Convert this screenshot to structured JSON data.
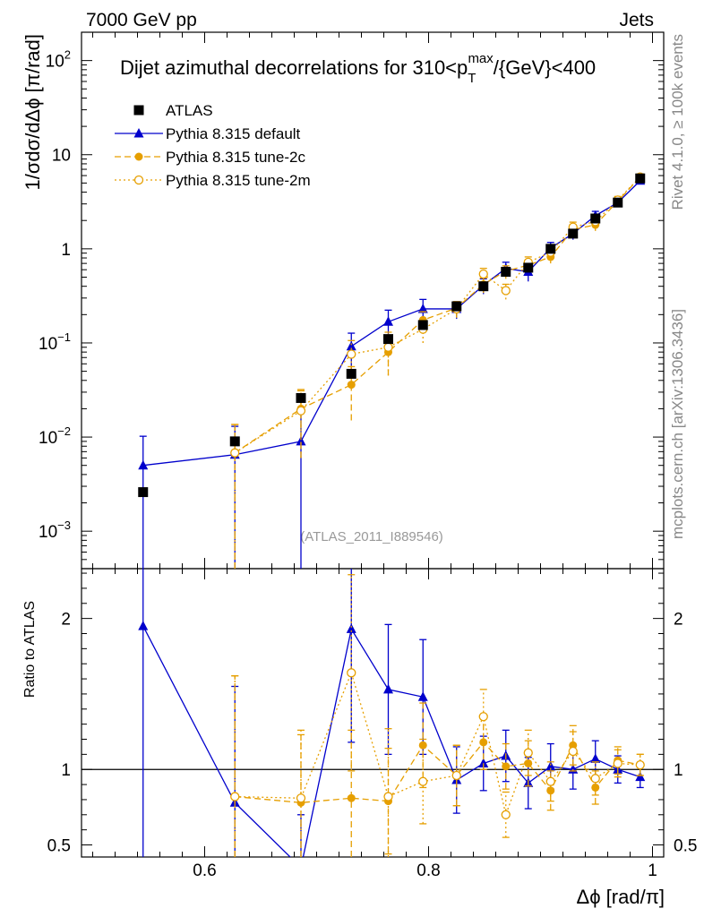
{
  "header": {
    "left": "7000 GeV pp",
    "right": "Jets"
  },
  "side_labels": {
    "rivet": "Rivet 4.1.0, ≥ 100k events",
    "mcplots": "mcplots.cern.ch [arXiv:1306.3436]"
  },
  "chart_data": {
    "type": "scatter",
    "title_main": "Dijet azimuthal decorrelations for 310<p",
    "title_sub": "T",
    "title_sup": "max",
    "title_tail": "/{GeV}<400",
    "analysis_id": "(ATLAS_2011_I889546)",
    "xlabel": "Δϕ [rad/π]",
    "ylabel_main": "1/σdσ/dΔϕ [π/rad]",
    "ylabel_ratio": "Ratio to ATLAS",
    "xlim": [
      0.49,
      1.01
    ],
    "ylim_main": [
      0.0004,
      200
    ],
    "ylim_ratio": [
      0.42,
      2.33
    ],
    "xticks": [
      {
        "value": 0.6,
        "label": "0.6"
      },
      {
        "value": 0.8,
        "label": "0.8"
      },
      {
        "value": 1.0,
        "label": "1"
      }
    ],
    "yticks_main": [
      {
        "value": 0.001,
        "base": "10",
        "exp": "−3"
      },
      {
        "value": 0.01,
        "base": "10",
        "exp": "−2"
      },
      {
        "value": 0.1,
        "base": "10",
        "exp": "−1"
      },
      {
        "value": 1,
        "base": "1",
        "exp": ""
      },
      {
        "value": 10,
        "base": "10",
        "exp": ""
      },
      {
        "value": 100,
        "base": "10",
        "exp": "2"
      }
    ],
    "yticks_ratio": [
      {
        "value": 0.5,
        "label": "0.5"
      },
      {
        "value": 1,
        "label": "1"
      },
      {
        "value": 2,
        "label": "2"
      }
    ],
    "data": {
      "name": "ATLAS",
      "x": [
        0.545,
        0.627,
        0.686,
        0.731,
        0.764,
        0.795,
        0.825,
        0.849,
        0.869,
        0.889,
        0.909,
        0.929,
        0.949,
        0.969,
        0.989
      ],
      "y": [
        0.0026,
        0.009,
        0.026,
        0.047,
        0.11,
        0.155,
        0.245,
        0.4,
        0.57,
        0.63,
        1.0,
        1.45,
        2.1,
        3.1,
        5.6
      ],
      "err": [
        0.0002,
        0.0009,
        0.003,
        0.005,
        0.01,
        0.015,
        0.02,
        0.03,
        0.05,
        0.05,
        0.08,
        0.1,
        0.15,
        0.2,
        0.4
      ]
    },
    "series": [
      {
        "name": "Pythia 8.315 default",
        "color": "#0000cc",
        "style": "solid",
        "marker": "triangle",
        "y": [
          0.005,
          0.0065,
          0.009,
          0.092,
          0.168,
          0.23,
          0.23,
          0.41,
          0.62,
          0.57,
          1.02,
          1.45,
          2.25,
          3.1,
          5.3
        ],
        "err_up": [
          0.0052,
          0.0065,
          0.009,
          0.035,
          0.055,
          0.06,
          0.045,
          0.07,
          0.1,
          0.1,
          0.15,
          0.18,
          0.25,
          0.25,
          0.4
        ],
        "err_down": [
          0.005,
          0.0065,
          0.009,
          0.045,
          0.06,
          0.065,
          0.05,
          0.08,
          0.12,
          0.12,
          0.17,
          0.2,
          0.28,
          0.28,
          0.45
        ],
        "ratio": [
          1.95,
          0.78,
          0.35,
          1.93,
          1.53,
          1.48,
          0.93,
          1.04,
          1.09,
          0.91,
          1.02,
          1.0,
          1.07,
          1.0,
          0.95
        ],
        "ratio_err": [
          2.0,
          0.77,
          0.35,
          0.75,
          0.43,
          0.38,
          0.22,
          0.18,
          0.17,
          0.17,
          0.15,
          0.13,
          0.12,
          0.09,
          0.07
        ]
      },
      {
        "name": "Pythia 8.315 tune-2c",
        "color": "#e69f00",
        "style": "dashed",
        "marker": "circle",
        "y": [
          null,
          0.0068,
          0.02,
          0.036,
          0.08,
          0.175,
          0.235,
          0.42,
          0.58,
          0.67,
          0.82,
          1.6,
          1.8,
          3.2,
          5.8
        ],
        "err_up": [
          null,
          0.0068,
          0.012,
          0.02,
          0.03,
          0.04,
          0.04,
          0.07,
          0.08,
          0.09,
          0.1,
          0.2,
          0.2,
          0.3,
          0.45
        ],
        "err_down": [
          null,
          0.0068,
          0.014,
          0.021,
          0.035,
          0.045,
          0.045,
          0.08,
          0.1,
          0.1,
          0.12,
          0.22,
          0.25,
          0.3,
          0.45
        ],
        "ratio": [
          null,
          0.82,
          0.78,
          0.81,
          0.79,
          1.16,
          0.96,
          1.18,
          1.02,
          1.04,
          0.86,
          1.16,
          0.88,
          1.06,
          1.03
        ],
        "ratio_err": [
          null,
          0.8,
          0.45,
          0.45,
          0.35,
          0.28,
          0.2,
          0.18,
          0.15,
          0.15,
          0.13,
          0.13,
          0.11,
          0.09,
          0.07
        ]
      },
      {
        "name": "Pythia 8.315 tune-2m",
        "color": "#e69f00",
        "style": "dotted",
        "marker": "open-circle",
        "y": [
          null,
          0.0068,
          0.019,
          0.076,
          0.09,
          0.14,
          0.23,
          0.54,
          0.36,
          0.72,
          0.92,
          1.7,
          1.95,
          3.3,
          5.8
        ],
        "err_up": [
          null,
          0.0068,
          0.012,
          0.03,
          0.04,
          0.035,
          0.04,
          0.08,
          0.06,
          0.1,
          0.12,
          0.22,
          0.25,
          0.3,
          0.45
        ],
        "err_down": [
          null,
          0.0068,
          0.013,
          0.032,
          0.045,
          0.04,
          0.045,
          0.09,
          0.07,
          0.12,
          0.13,
          0.24,
          0.27,
          0.3,
          0.45
        ],
        "ratio": [
          null,
          0.82,
          0.81,
          1.64,
          0.82,
          0.92,
          0.96,
          1.35,
          0.7,
          1.11,
          0.92,
          1.12,
          0.94,
          1.04,
          1.03
        ],
        "ratio_err": [
          null,
          0.8,
          0.45,
          0.65,
          0.45,
          0.28,
          0.2,
          0.18,
          0.15,
          0.15,
          0.13,
          0.13,
          0.11,
          0.09,
          0.07
        ]
      }
    ]
  }
}
